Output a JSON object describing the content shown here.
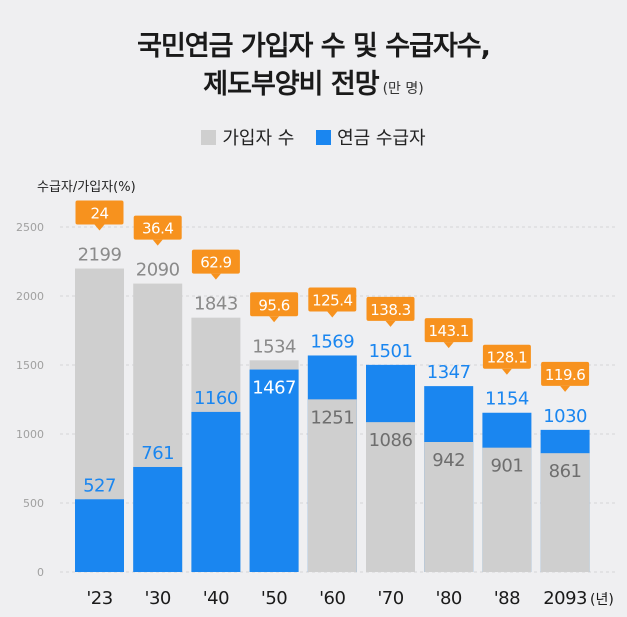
{
  "title_line1": "국민연금 가입자 수 및 수급자수,",
  "title_line2": "제도부양비 전망",
  "title_unit": "(만 명)",
  "legend": [
    {
      "label": "가입자 수",
      "color": "#cfcfcf"
    },
    {
      "label": "연금 수급자",
      "color": "#1a86f0"
    }
  ],
  "chart_data": {
    "type": "bar",
    "title": "국민연금 가입자 수 및 수급자수, 제도부양비 전망 (만 명)",
    "categories": [
      "'23",
      "'30",
      "'40",
      "'50",
      "'60",
      "'70",
      "'80",
      "'88",
      "2093"
    ],
    "x_unit": "(년)",
    "series": [
      {
        "name": "가입자 수",
        "values": [
          2199,
          2090,
          1843,
          1534,
          1251,
          1086,
          942,
          901,
          861
        ]
      },
      {
        "name": "연금 수급자",
        "values": [
          527,
          761,
          1160,
          1467,
          1569,
          1501,
          1347,
          1154,
          1030
        ]
      },
      {
        "name": "수급자/가입자(%)",
        "values": [
          24,
          36.4,
          62.9,
          95.6,
          125.4,
          138.3,
          143.1,
          128.1,
          119.6
        ]
      }
    ],
    "ylabel": "수급자/가입자(%)",
    "ylim": [
      0,
      2500
    ],
    "yticks": [
      0,
      500,
      1000,
      1500,
      2000,
      2500
    ],
    "grid": true
  },
  "colors": {
    "subscriber": "#cfcfcf",
    "recipient": "#1a86f0",
    "ratio_box": "#f7921e",
    "subscriber_label": "#8a8a8a",
    "recipient_label": "#1a86f0",
    "inner_label_on_blue": "#ffffff",
    "inner_label_on_gray": "#6e6e6e"
  }
}
